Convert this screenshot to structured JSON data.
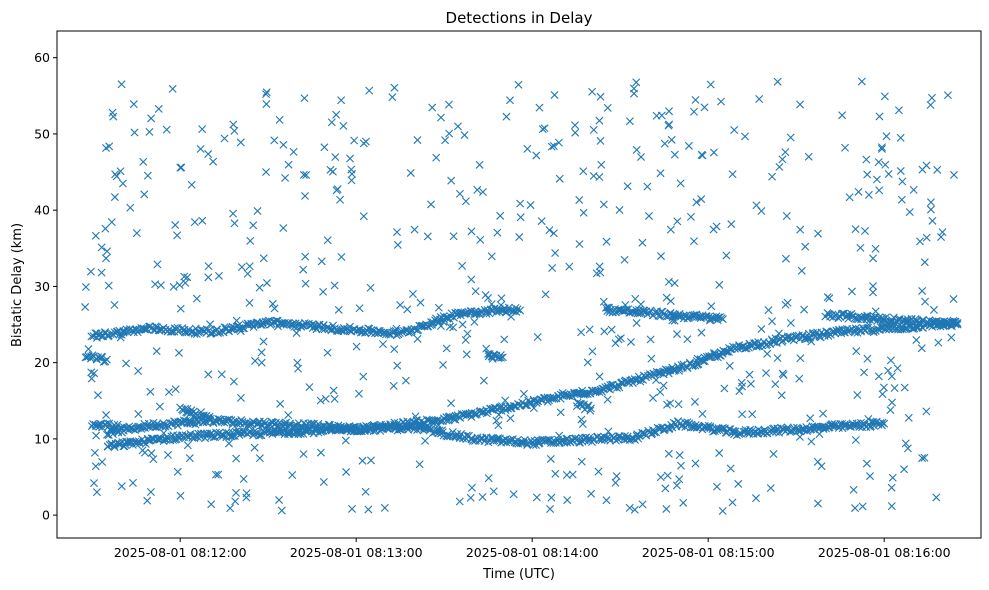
{
  "chart_data": {
    "type": "scatter",
    "title": "Detections in Delay",
    "xlabel": "Time (UTC)",
    "ylabel": "Bistatic Delay (km)",
    "x_start": "2025-08-01 08:11:27",
    "x_end": "2025-08-01 08:16:25",
    "xlim": [
      "2025-08-01 08:11:18",
      "2025-08-01 08:16:33"
    ],
    "ylim": [
      -3,
      63.5
    ],
    "x_ticks": [
      "2025-08-01 08:12:00",
      "2025-08-01 08:13:00",
      "2025-08-01 08:14:00",
      "2025-08-01 08:15:00",
      "2025-08-01 08:16:00"
    ],
    "y_ticks": [
      0,
      10,
      20,
      30,
      40,
      50,
      60
    ],
    "marker": "x",
    "color": "#1f77b4",
    "grid": false,
    "legend": "none",
    "series": [
      {
        "kind": "track",
        "points": [
          [
            "2025-08-01 08:11:35",
            10.8
          ],
          [
            "2025-08-01 08:11:50",
            11.8
          ],
          [
            "2025-08-01 08:12:10",
            12.4
          ],
          [
            "2025-08-01 08:12:40",
            11.8
          ],
          [
            "2025-08-01 08:13:00",
            11.3
          ],
          [
            "2025-08-01 08:13:30",
            12.5
          ],
          [
            "2025-08-01 08:14:00",
            14.8
          ],
          [
            "2025-08-01 08:14:25",
            16.6
          ],
          [
            "2025-08-01 08:14:55",
            19.8
          ],
          [
            "2025-08-01 08:15:10",
            22.0
          ],
          [
            "2025-08-01 08:15:30",
            23.3
          ],
          [
            "2025-08-01 08:15:45",
            24.0
          ],
          [
            "2025-08-01 08:16:25",
            25.2
          ]
        ]
      },
      {
        "kind": "track",
        "points": [
          [
            "2025-08-01 08:11:35",
            9.0
          ],
          [
            "2025-08-01 08:12:00",
            10.3
          ],
          [
            "2025-08-01 08:12:30",
            10.8
          ],
          [
            "2025-08-01 08:13:00",
            11.3
          ],
          [
            "2025-08-01 08:13:20",
            11.5
          ],
          [
            "2025-08-01 08:13:40",
            10.0
          ],
          [
            "2025-08-01 08:14:00",
            9.5
          ],
          [
            "2025-08-01 08:14:35",
            10.2
          ],
          [
            "2025-08-01 08:14:50",
            12.0
          ],
          [
            "2025-08-01 08:15:10",
            10.8
          ],
          [
            "2025-08-01 08:15:40",
            11.5
          ],
          [
            "2025-08-01 08:16:00",
            12.0
          ]
        ]
      },
      {
        "kind": "track",
        "points": [
          [
            "2025-08-01 08:11:30",
            23.5
          ],
          [
            "2025-08-01 08:11:50",
            24.5
          ],
          [
            "2025-08-01 08:12:10",
            24.0
          ],
          [
            "2025-08-01 08:12:30",
            25.3
          ],
          [
            "2025-08-01 08:12:50",
            24.6
          ],
          [
            "2025-08-01 08:13:15",
            23.8
          ],
          [
            "2025-08-01 08:13:35",
            26.5
          ],
          [
            "2025-08-01 08:13:55",
            27.0
          ]
        ]
      },
      {
        "kind": "track",
        "points": [
          [
            "2025-08-01 08:14:25",
            27.0
          ],
          [
            "2025-08-01 08:15:05",
            25.7
          ]
        ]
      },
      {
        "kind": "track",
        "points": [
          [
            "2025-08-01 08:15:40",
            26.3
          ],
          [
            "2025-08-01 08:16:25",
            25.0
          ]
        ]
      },
      {
        "kind": "track",
        "points": [
          [
            "2025-08-01 08:11:28",
            20.8
          ],
          [
            "2025-08-01 08:11:35",
            20.4
          ]
        ]
      },
      {
        "kind": "track",
        "points": [
          [
            "2025-08-01 08:12:00",
            13.8
          ],
          [
            "2025-08-01 08:12:10",
            12.9
          ]
        ]
      },
      {
        "kind": "track",
        "points": [
          [
            "2025-08-01 08:11:30",
            12.0
          ],
          [
            "2025-08-01 08:11:40",
            11.5
          ]
        ]
      },
      {
        "kind": "track",
        "points": [
          [
            "2025-08-01 08:13:45",
            20.8
          ],
          [
            "2025-08-01 08:13:50",
            20.7
          ]
        ]
      },
      {
        "kind": "track",
        "points": [
          [
            "2025-08-01 08:14:15",
            14.5
          ],
          [
            "2025-08-01 08:14:20",
            14.0
          ]
        ]
      }
    ]
  }
}
